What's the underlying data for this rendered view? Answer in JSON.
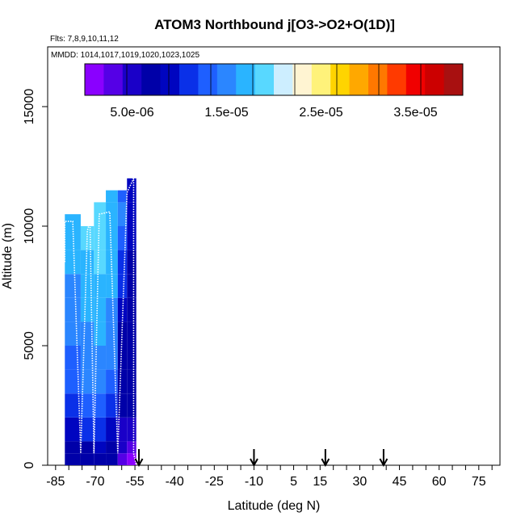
{
  "chart_data": {
    "type": "heatmap",
    "title": "ATOM3 Northbound j[O3->O2+O(1D)]",
    "subtitle_flights": "Flts: 7,8,9,10,11,12",
    "subtitle_dates": "MMDD: 1014,1017,1019,1020,1023,1025",
    "xlabel": "Latitude (deg N)",
    "ylabel": "Altitude (m)",
    "xlim": [
      -88,
      83
    ],
    "ylim": [
      0,
      17500
    ],
    "x_ticks": [
      -85,
      -70,
      -55,
      -40,
      -25,
      -10,
      5,
      15,
      30,
      45,
      60,
      75
    ],
    "x_tick_labels": [
      "-85",
      "-70",
      "-55",
      "-40",
      "-25",
      "-10",
      "5",
      "15",
      "30",
      "45",
      "60",
      "75"
    ],
    "y_ticks": [
      0,
      5000,
      10000,
      15000
    ],
    "y_tick_labels": [
      "0",
      "5000",
      "10000",
      "15000"
    ],
    "colorbar": {
      "min": 0,
      "max": 4e-05,
      "tick_values": [
        5e-06,
        1.5e-05,
        2.5e-05,
        3.5e-05
      ],
      "tick_labels": [
        "5.0e-06",
        "1.5e-05",
        "2.5e-05",
        "3.5e-05"
      ],
      "colors": [
        "#8a00ff",
        "#5500e6",
        "#1a00c8",
        "#0000a8",
        "#0005c0",
        "#0a30e8",
        "#1e5fff",
        "#2b86ff",
        "#2ab4ff",
        "#58d8ff",
        "#cdeeff",
        "#fff4d2",
        "#fff27a",
        "#ffd400",
        "#ffa800",
        "#ff7800",
        "#ff3a00",
        "#f00000",
        "#cc0000",
        "#a81010"
      ]
    },
    "arrows_latitude": [
      -53.5,
      -10,
      17,
      39
    ],
    "columns": [
      {
        "lat0": -81.5,
        "lat1": -75.5,
        "alt_top": 10500,
        "layers": [
          [
            0,
            500,
            7e-06
          ],
          [
            500,
            1000,
            6.2e-06
          ],
          [
            1000,
            2000,
            8.5e-06
          ],
          [
            2000,
            3000,
            1e-05
          ],
          [
            3000,
            4000,
            1.2e-05
          ],
          [
            4000,
            5000,
            1.3e-05
          ],
          [
            5000,
            6000,
            1.4e-05
          ],
          [
            6000,
            7000,
            1.5e-05
          ],
          [
            7000,
            8000,
            1.6e-05
          ],
          [
            8000,
            9000,
            1.65e-05
          ],
          [
            9000,
            10000,
            1.72e-05
          ],
          [
            10000,
            10500,
            1.78e-05
          ]
        ]
      },
      {
        "lat0": -75.5,
        "lat1": -70.5,
        "alt_top": 10000,
        "layers": [
          [
            0,
            500,
            6.5e-06
          ],
          [
            500,
            1000,
            8e-06
          ],
          [
            1000,
            2000,
            1e-05
          ],
          [
            2000,
            3000,
            1.2e-05
          ],
          [
            3000,
            4000,
            1.4e-05
          ],
          [
            4000,
            5000,
            1.5e-05
          ],
          [
            5000,
            6000,
            1.58e-05
          ],
          [
            6000,
            7000,
            1.65e-05
          ],
          [
            7000,
            8000,
            1.7e-05
          ],
          [
            8000,
            9000,
            1.75e-05
          ],
          [
            9000,
            10000,
            1.8e-05
          ]
        ]
      },
      {
        "lat0": -70.5,
        "lat1": -66,
        "alt_top": 11000,
        "layers": [
          [
            0,
            500,
            7.5e-06
          ],
          [
            500,
            1000,
            9e-06
          ],
          [
            1000,
            2000,
            1.15e-05
          ],
          [
            2000,
            3000,
            1.35e-05
          ],
          [
            3000,
            4000,
            1.5e-05
          ],
          [
            4000,
            5000,
            1.6e-05
          ],
          [
            5000,
            6000,
            1.68e-05
          ],
          [
            6000,
            7000,
            1.74e-05
          ],
          [
            7000,
            8000,
            1.79e-05
          ],
          [
            8000,
            9000,
            1.83e-05
          ],
          [
            9000,
            10000,
            1.86e-05
          ],
          [
            10000,
            11000,
            1.88e-05
          ]
        ]
      },
      {
        "lat0": -66,
        "lat1": -61.5,
        "alt_top": 11500,
        "layers": [
          [
            0,
            500,
            7e-06
          ],
          [
            500,
            1000,
            8e-06
          ],
          [
            1000,
            2000,
            9.5e-06
          ],
          [
            2000,
            3000,
            1.1e-05
          ],
          [
            3000,
            4000,
            1.25e-05
          ],
          [
            4000,
            5000,
            1.4e-05
          ],
          [
            5000,
            6000,
            1.5e-05
          ],
          [
            6000,
            7000,
            1.58e-05
          ],
          [
            7000,
            8000,
            1.65e-05
          ],
          [
            8000,
            9000,
            1.7e-05
          ],
          [
            9000,
            10000,
            1.75e-05
          ],
          [
            10000,
            11000,
            1.78e-05
          ],
          [
            11000,
            11500,
            1.76e-05
          ]
        ]
      },
      {
        "lat0": -61.5,
        "lat1": -58,
        "alt_top": 11500,
        "layers": [
          [
            0,
            500,
            4e-06
          ],
          [
            500,
            1000,
            4.5e-06
          ],
          [
            1000,
            2000,
            5.5e-06
          ],
          [
            2000,
            3000,
            6e-06
          ],
          [
            3000,
            4000,
            6.8e-06
          ],
          [
            4000,
            5000,
            7.5e-06
          ],
          [
            5000,
            6000,
            8e-06
          ],
          [
            6000,
            7000,
            8.8e-06
          ],
          [
            7000,
            8000,
            1e-05
          ],
          [
            8000,
            9000,
            1.15e-05
          ],
          [
            9000,
            10000,
            1.3e-05
          ],
          [
            10000,
            11000,
            1.4e-05
          ],
          [
            11000,
            11500,
            1.3e-05
          ]
        ]
      },
      {
        "lat0": -58,
        "lat1": -54.5,
        "alt_top": 12000,
        "layers": [
          [
            0,
            500,
            1.5e-06
          ],
          [
            500,
            1000,
            3e-06
          ],
          [
            1000,
            2000,
            5e-06
          ],
          [
            2000,
            3000,
            6e-06
          ],
          [
            3000,
            4000,
            6.5e-06
          ],
          [
            4000,
            5000,
            7e-06
          ],
          [
            5000,
            6000,
            7.2e-06
          ],
          [
            6000,
            7000,
            7.5e-06
          ],
          [
            7000,
            8000,
            7.8e-06
          ],
          [
            8000,
            9000,
            8e-06
          ],
          [
            9000,
            10000,
            8.2e-06
          ],
          [
            10000,
            11000,
            8.5e-06
          ],
          [
            11000,
            12000,
            9e-06
          ]
        ]
      }
    ],
    "flight_track": [
      [
        -81.5,
        8500
      ],
      [
        -81.5,
        10200
      ],
      [
        -78.5,
        10200
      ],
      [
        -75.5,
        500
      ],
      [
        -73,
        9800
      ],
      [
        -72,
        10200
      ],
      [
        -70.5,
        500
      ],
      [
        -68.5,
        10500
      ],
      [
        -64.5,
        10600
      ],
      [
        -61.5,
        500
      ],
      [
        -58,
        11400
      ],
      [
        -55.5,
        12000
      ],
      [
        -55.5,
        500
      ],
      [
        -54.5,
        0
      ]
    ]
  }
}
